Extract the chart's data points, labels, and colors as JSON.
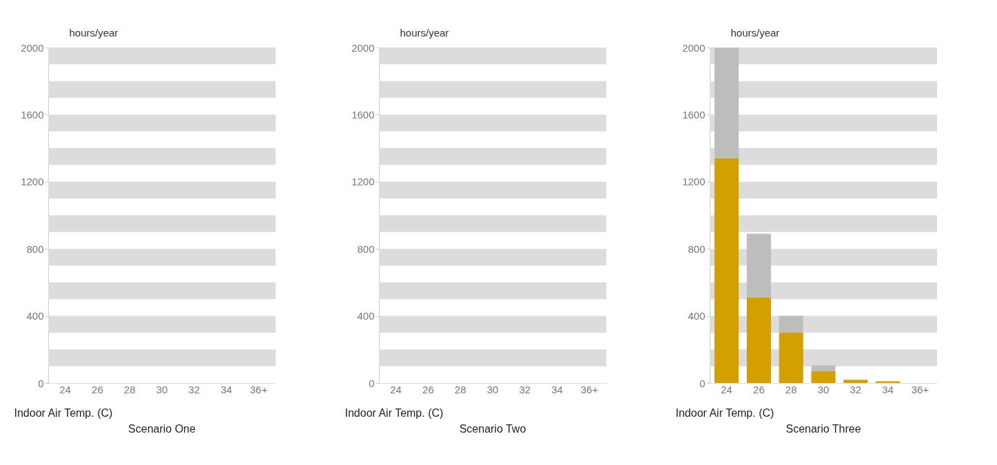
{
  "chart_data": [
    {
      "type": "bar",
      "title": "Scenario One",
      "xlabel": "Indoor Air Temp. (C)",
      "ylabel": "hours/year",
      "categories": [
        "24",
        "26",
        "28",
        "30",
        "32",
        "34",
        "36+"
      ],
      "stacked": true,
      "series": [
        {
          "color": "#d4a000",
          "values": [
            0,
            0,
            0,
            0,
            0,
            0,
            0
          ]
        },
        {
          "color": "#bdbdbd",
          "values": [
            0,
            0,
            0,
            0,
            0,
            0,
            0
          ]
        }
      ],
      "ylim": [
        0,
        2000
      ],
      "yticks": [
        0,
        400,
        800,
        1200,
        1600,
        2000
      ],
      "bands": [
        {
          "axis": "y",
          "from": 100,
          "to": 200,
          "color": "#dcdcdc"
        },
        {
          "axis": "y",
          "from": 300,
          "to": 400,
          "color": "#dcdcdc"
        },
        {
          "axis": "y",
          "from": 500,
          "to": 600,
          "color": "#dcdcdc"
        },
        {
          "axis": "y",
          "from": 700,
          "to": 800,
          "color": "#dcdcdc"
        },
        {
          "axis": "y",
          "from": 900,
          "to": 1000,
          "color": "#dcdcdc"
        },
        {
          "axis": "y",
          "from": 1100,
          "to": 1200,
          "color": "#dcdcdc"
        },
        {
          "axis": "y",
          "from": 1300,
          "to": 1400,
          "color": "#dcdcdc"
        },
        {
          "axis": "y",
          "from": 1500,
          "to": 1600,
          "color": "#dcdcdc"
        },
        {
          "axis": "y",
          "from": 1700,
          "to": 1800,
          "color": "#dcdcdc"
        },
        {
          "axis": "y",
          "from": 1900,
          "to": 2000,
          "color": "#dcdcdc"
        }
      ]
    },
    {
      "type": "bar",
      "title": "Scenario Two",
      "xlabel": "Indoor Air Temp. (C)",
      "ylabel": "hours/year",
      "categories": [
        "24",
        "26",
        "28",
        "30",
        "32",
        "34",
        "36+"
      ],
      "stacked": true,
      "series": [
        {
          "color": "#d4a000",
          "values": [
            0,
            0,
            0,
            0,
            0,
            0,
            0
          ]
        },
        {
          "color": "#bdbdbd",
          "values": [
            0,
            0,
            0,
            0,
            0,
            0,
            0
          ]
        }
      ],
      "ylim": [
        0,
        2000
      ],
      "yticks": [
        0,
        400,
        800,
        1200,
        1600,
        2000
      ],
      "bands": [
        {
          "axis": "y",
          "from": 100,
          "to": 200,
          "color": "#dcdcdc"
        },
        {
          "axis": "y",
          "from": 300,
          "to": 400,
          "color": "#dcdcdc"
        },
        {
          "axis": "y",
          "from": 500,
          "to": 600,
          "color": "#dcdcdc"
        },
        {
          "axis": "y",
          "from": 700,
          "to": 800,
          "color": "#dcdcdc"
        },
        {
          "axis": "y",
          "from": 900,
          "to": 1000,
          "color": "#dcdcdc"
        },
        {
          "axis": "y",
          "from": 1100,
          "to": 1200,
          "color": "#dcdcdc"
        },
        {
          "axis": "y",
          "from": 1300,
          "to": 1400,
          "color": "#dcdcdc"
        },
        {
          "axis": "y",
          "from": 1500,
          "to": 1600,
          "color": "#dcdcdc"
        },
        {
          "axis": "y",
          "from": 1700,
          "to": 1800,
          "color": "#dcdcdc"
        },
        {
          "axis": "y",
          "from": 1900,
          "to": 2000,
          "color": "#dcdcdc"
        }
      ]
    },
    {
      "type": "bar",
      "title": "Scenario Three",
      "xlabel": "Indoor Air Temp. (C)",
      "ylabel": "hours/year",
      "categories": [
        "24",
        "26",
        "28",
        "30",
        "32",
        "34",
        "36+"
      ],
      "stacked": true,
      "series": [
        {
          "color": "#d4a000",
          "values": [
            1340,
            510,
            300,
            70,
            20,
            10,
            0
          ]
        },
        {
          "color": "#bdbdbd",
          "values": [
            660,
            380,
            100,
            35,
            0,
            0,
            0
          ]
        }
      ],
      "ylim": [
        0,
        2000
      ],
      "yticks": [
        0,
        400,
        800,
        1200,
        1600,
        2000
      ],
      "bands": [
        {
          "axis": "y",
          "from": 100,
          "to": 200,
          "color": "#dcdcdc"
        },
        {
          "axis": "y",
          "from": 300,
          "to": 400,
          "color": "#dcdcdc"
        },
        {
          "axis": "y",
          "from": 500,
          "to": 600,
          "color": "#dcdcdc"
        },
        {
          "axis": "y",
          "from": 700,
          "to": 800,
          "color": "#dcdcdc"
        },
        {
          "axis": "y",
          "from": 900,
          "to": 1000,
          "color": "#dcdcdc"
        },
        {
          "axis": "y",
          "from": 1100,
          "to": 1200,
          "color": "#dcdcdc"
        },
        {
          "axis": "y",
          "from": 1300,
          "to": 1400,
          "color": "#dcdcdc"
        },
        {
          "axis": "y",
          "from": 1500,
          "to": 1600,
          "color": "#dcdcdc"
        },
        {
          "axis": "y",
          "from": 1700,
          "to": 1800,
          "color": "#dcdcdc"
        },
        {
          "axis": "y",
          "from": 1900,
          "to": 2000,
          "color": "#dcdcdc"
        }
      ]
    }
  ]
}
